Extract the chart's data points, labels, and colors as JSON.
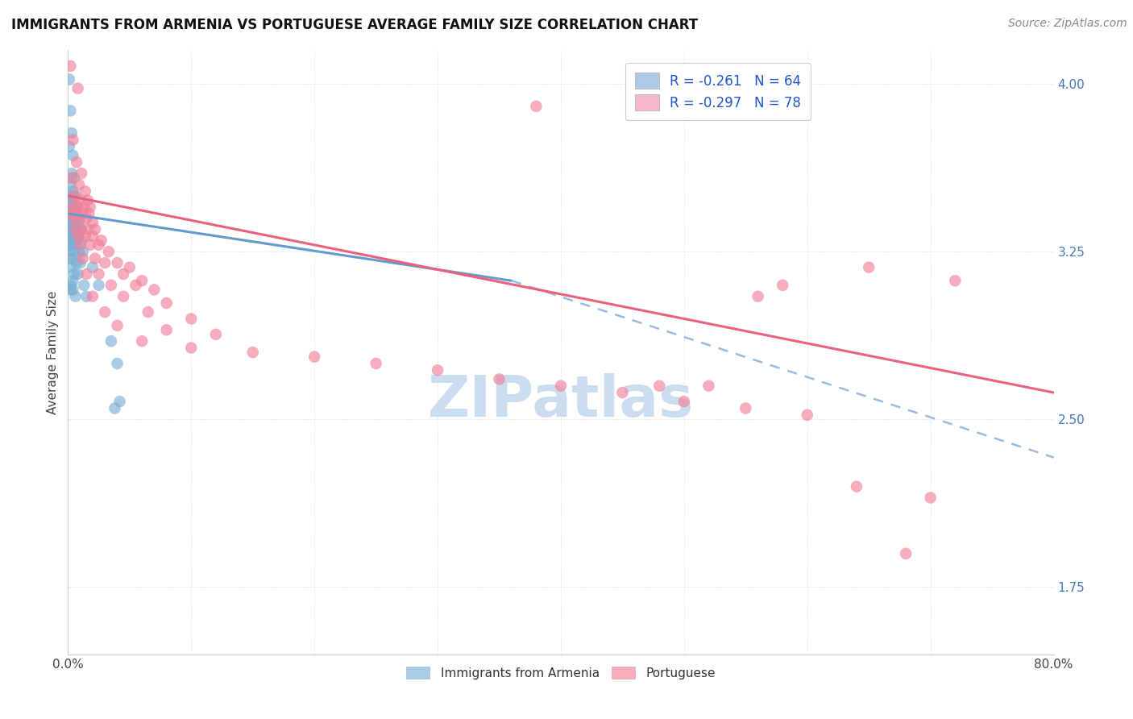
{
  "title": "IMMIGRANTS FROM ARMENIA VS PORTUGUESE AVERAGE FAMILY SIZE CORRELATION CHART",
  "source": "Source: ZipAtlas.com",
  "ylabel": "Average Family Size",
  "yticks": [
    1.75,
    2.5,
    3.25,
    4.0
  ],
  "xlim": [
    0.0,
    0.8
  ],
  "ylim": [
    1.45,
    4.15
  ],
  "legend_entry1_label": "R = -0.261   N = 64",
  "legend_entry2_label": "R = -0.297   N = 78",
  "legend_entry1_color": "#adc8e8",
  "legend_entry2_color": "#f5b8c8",
  "legend_label1": "Immigrants from Armenia",
  "legend_label2": "Portuguese",
  "watermark": "ZIPatlas",
  "armenia_color": "#7bafd4",
  "portuguese_color": "#f08098",
  "armenia_scatter": [
    [
      0.001,
      4.02
    ],
    [
      0.002,
      3.88
    ],
    [
      0.003,
      3.78
    ],
    [
      0.001,
      3.72
    ],
    [
      0.004,
      3.68
    ],
    [
      0.003,
      3.6
    ],
    [
      0.005,
      3.58
    ],
    [
      0.002,
      3.55
    ],
    [
      0.004,
      3.52
    ],
    [
      0.001,
      3.5
    ],
    [
      0.006,
      3.5
    ],
    [
      0.003,
      3.48
    ],
    [
      0.005,
      3.48
    ],
    [
      0.002,
      3.45
    ],
    [
      0.004,
      3.45
    ],
    [
      0.007,
      3.45
    ],
    [
      0.001,
      3.42
    ],
    [
      0.003,
      3.42
    ],
    [
      0.006,
      3.42
    ],
    [
      0.002,
      3.4
    ],
    [
      0.005,
      3.4
    ],
    [
      0.008,
      3.4
    ],
    [
      0.001,
      3.38
    ],
    [
      0.003,
      3.38
    ],
    [
      0.006,
      3.38
    ],
    [
      0.009,
      3.38
    ],
    [
      0.002,
      3.35
    ],
    [
      0.004,
      3.35
    ],
    [
      0.007,
      3.35
    ],
    [
      0.01,
      3.35
    ],
    [
      0.001,
      3.33
    ],
    [
      0.003,
      3.33
    ],
    [
      0.005,
      3.32
    ],
    [
      0.008,
      3.32
    ],
    [
      0.002,
      3.3
    ],
    [
      0.004,
      3.3
    ],
    [
      0.007,
      3.3
    ],
    [
      0.011,
      3.3
    ],
    [
      0.001,
      3.28
    ],
    [
      0.003,
      3.28
    ],
    [
      0.006,
      3.28
    ],
    [
      0.009,
      3.25
    ],
    [
      0.002,
      3.25
    ],
    [
      0.005,
      3.25
    ],
    [
      0.012,
      3.25
    ],
    [
      0.001,
      3.22
    ],
    [
      0.003,
      3.22
    ],
    [
      0.007,
      3.2
    ],
    [
      0.01,
      3.2
    ],
    [
      0.002,
      3.18
    ],
    [
      0.005,
      3.15
    ],
    [
      0.008,
      3.15
    ],
    [
      0.004,
      3.12
    ],
    [
      0.013,
      3.1
    ],
    [
      0.002,
      3.08
    ],
    [
      0.006,
      3.05
    ],
    [
      0.015,
      3.05
    ],
    [
      0.02,
      3.18
    ],
    [
      0.025,
      3.1
    ],
    [
      0.035,
      2.85
    ],
    [
      0.04,
      2.75
    ],
    [
      0.038,
      2.55
    ],
    [
      0.042,
      2.58
    ],
    [
      0.002,
      3.1
    ],
    [
      0.004,
      3.08
    ]
  ],
  "portuguese_scatter": [
    [
      0.002,
      4.08
    ],
    [
      0.008,
      3.98
    ],
    [
      0.38,
      3.9
    ],
    [
      0.004,
      3.75
    ],
    [
      0.007,
      3.65
    ],
    [
      0.011,
      3.6
    ],
    [
      0.003,
      3.58
    ],
    [
      0.009,
      3.55
    ],
    [
      0.014,
      3.52
    ],
    [
      0.005,
      3.5
    ],
    [
      0.01,
      3.48
    ],
    [
      0.016,
      3.48
    ],
    [
      0.004,
      3.45
    ],
    [
      0.008,
      3.45
    ],
    [
      0.013,
      3.45
    ],
    [
      0.018,
      3.45
    ],
    [
      0.003,
      3.42
    ],
    [
      0.007,
      3.42
    ],
    [
      0.012,
      3.42
    ],
    [
      0.017,
      3.42
    ],
    [
      0.005,
      3.4
    ],
    [
      0.01,
      3.4
    ],
    [
      0.015,
      3.4
    ],
    [
      0.02,
      3.38
    ],
    [
      0.006,
      3.35
    ],
    [
      0.011,
      3.35
    ],
    [
      0.016,
      3.35
    ],
    [
      0.022,
      3.35
    ],
    [
      0.008,
      3.32
    ],
    [
      0.014,
      3.32
    ],
    [
      0.02,
      3.32
    ],
    [
      0.027,
      3.3
    ],
    [
      0.01,
      3.28
    ],
    [
      0.018,
      3.28
    ],
    [
      0.025,
      3.28
    ],
    [
      0.033,
      3.25
    ],
    [
      0.012,
      3.22
    ],
    [
      0.022,
      3.22
    ],
    [
      0.03,
      3.2
    ],
    [
      0.04,
      3.2
    ],
    [
      0.05,
      3.18
    ],
    [
      0.015,
      3.15
    ],
    [
      0.025,
      3.15
    ],
    [
      0.045,
      3.15
    ],
    [
      0.06,
      3.12
    ],
    [
      0.035,
      3.1
    ],
    [
      0.055,
      3.1
    ],
    [
      0.07,
      3.08
    ],
    [
      0.02,
      3.05
    ],
    [
      0.045,
      3.05
    ],
    [
      0.08,
      3.02
    ],
    [
      0.03,
      2.98
    ],
    [
      0.065,
      2.98
    ],
    [
      0.1,
      2.95
    ],
    [
      0.04,
      2.92
    ],
    [
      0.08,
      2.9
    ],
    [
      0.12,
      2.88
    ],
    [
      0.06,
      2.85
    ],
    [
      0.1,
      2.82
    ],
    [
      0.15,
      2.8
    ],
    [
      0.2,
      2.78
    ],
    [
      0.25,
      2.75
    ],
    [
      0.3,
      2.72
    ],
    [
      0.35,
      2.68
    ],
    [
      0.4,
      2.65
    ],
    [
      0.45,
      2.62
    ],
    [
      0.5,
      2.58
    ],
    [
      0.55,
      2.55
    ],
    [
      0.6,
      2.52
    ],
    [
      0.64,
      2.2
    ],
    [
      0.7,
      2.15
    ],
    [
      0.68,
      1.9
    ],
    [
      0.65,
      3.18
    ],
    [
      0.72,
      3.12
    ],
    [
      0.58,
      3.1
    ],
    [
      0.56,
      3.05
    ],
    [
      0.52,
      2.65
    ],
    [
      0.48,
      2.65
    ]
  ],
  "armenia_line_solid": {
    "x": [
      0.0,
      0.36
    ],
    "y": [
      3.42,
      3.12
    ]
  },
  "armenia_line_dashed": {
    "x": [
      0.36,
      0.8
    ],
    "y": [
      3.12,
      2.33
    ]
  },
  "portuguese_line": {
    "x": [
      0.0,
      0.8
    ],
    "y": [
      3.5,
      2.62
    ]
  },
  "line_color_armenia": "#6699cc",
  "line_color_portuguese": "#e8607a",
  "line_color_armenia_dashed": "#99bbdd",
  "grid_color": "#e8e8e8",
  "right_axis_color": "#4477bb",
  "title_fontsize": 12,
  "source_fontsize": 10,
  "watermark_color": "#ccddf0",
  "watermark_fontsize": 52,
  "scatter_size": 110,
  "scatter_alpha": 0.65
}
